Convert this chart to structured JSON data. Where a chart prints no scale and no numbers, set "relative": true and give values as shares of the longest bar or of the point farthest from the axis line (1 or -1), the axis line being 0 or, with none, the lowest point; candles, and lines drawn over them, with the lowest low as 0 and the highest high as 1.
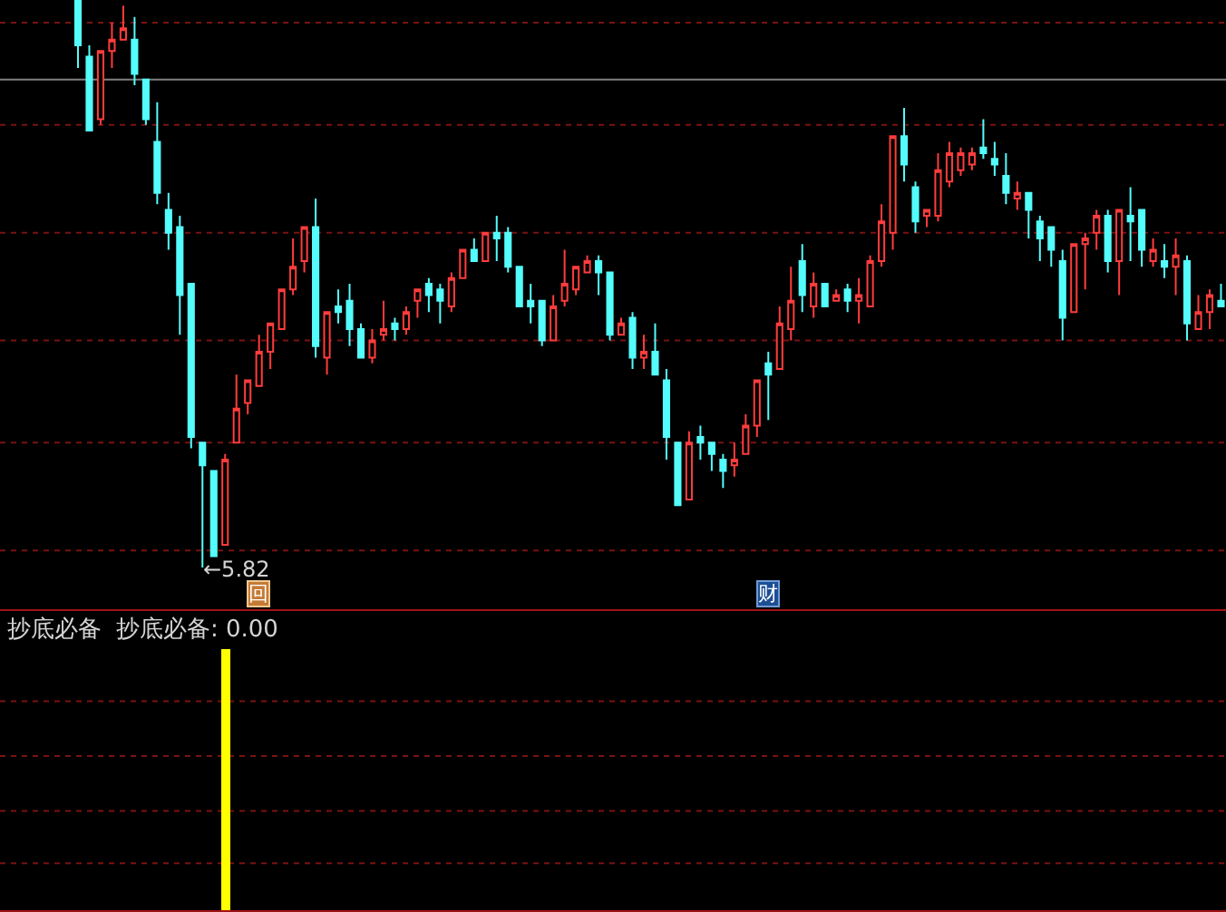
{
  "chart_data": [
    {
      "type": "candlestick",
      "categories": [
        null,
        null,
        null,
        null,
        null,
        null,
        null,
        null,
        null,
        null,
        null,
        null,
        null,
        null,
        null,
        null,
        null,
        null,
        null,
        null,
        null,
        null,
        null,
        null,
        null,
        null,
        null,
        null,
        null,
        null,
        null,
        null,
        null,
        null,
        null,
        null,
        null,
        null,
        null,
        null,
        null,
        null,
        null,
        null,
        null,
        null,
        null,
        null,
        null,
        null,
        null,
        null,
        null,
        null,
        null,
        null,
        null,
        null,
        null,
        null,
        null,
        null,
        null,
        null,
        null,
        null,
        null,
        null,
        null,
        null,
        null,
        null,
        null,
        null,
        null,
        null,
        null,
        null,
        null,
        null,
        null,
        null,
        null,
        null,
        null,
        null,
        null,
        null,
        null,
        null,
        null,
        null,
        null,
        null,
        null,
        null,
        null,
        null,
        null,
        null,
        null,
        null
      ],
      "ohlc": [
        [
          1.0,
          1.0,
          0.88,
          0.92
        ],
        [
          0.9,
          0.92,
          0.77,
          0.77
        ],
        [
          0.79,
          0.91,
          0.78,
          0.91
        ],
        [
          0.91,
          0.96,
          0.88,
          0.93
        ],
        [
          0.93,
          0.99,
          0.93,
          0.95
        ],
        [
          0.93,
          0.97,
          0.85,
          0.87
        ],
        [
          0.86,
          0.86,
          0.78,
          0.79
        ],
        [
          0.75,
          0.82,
          0.64,
          0.66
        ],
        [
          0.63,
          0.66,
          0.56,
          0.59
        ],
        [
          0.6,
          0.62,
          0.41,
          0.48
        ],
        [
          0.5,
          0.5,
          0.21,
          0.23
        ],
        [
          0.22,
          0.22,
          0.0,
          0.18
        ],
        [
          0.17,
          0.17,
          0.02,
          0.02
        ],
        [
          0.04,
          0.2,
          0.04,
          0.19
        ],
        [
          0.22,
          0.34,
          0.22,
          0.28
        ],
        [
          0.29,
          0.33,
          0.27,
          0.33
        ],
        [
          0.32,
          0.41,
          0.32,
          0.38
        ],
        [
          0.38,
          0.43,
          0.35,
          0.43
        ],
        [
          0.42,
          0.49,
          0.42,
          0.49
        ],
        [
          0.49,
          0.58,
          0.48,
          0.53
        ],
        [
          0.54,
          0.6,
          0.52,
          0.6
        ],
        [
          0.6,
          0.65,
          0.37,
          0.39
        ],
        [
          0.37,
          0.45,
          0.34,
          0.45
        ],
        [
          0.46,
          0.49,
          0.43,
          0.45
        ],
        [
          0.47,
          0.5,
          0.39,
          0.42
        ],
        [
          0.42,
          0.43,
          0.37,
          0.37
        ],
        [
          0.37,
          0.42,
          0.36,
          0.4
        ],
        [
          0.41,
          0.47,
          0.4,
          0.42
        ],
        [
          0.43,
          0.44,
          0.4,
          0.42
        ],
        [
          0.42,
          0.46,
          0.41,
          0.45
        ],
        [
          0.47,
          0.49,
          0.44,
          0.49
        ],
        [
          0.5,
          0.51,
          0.45,
          0.48
        ],
        [
          0.49,
          0.5,
          0.43,
          0.47
        ],
        [
          0.46,
          0.52,
          0.45,
          0.51
        ],
        [
          0.51,
          0.56,
          0.51,
          0.56
        ],
        [
          0.56,
          0.58,
          0.54,
          0.54
        ],
        [
          0.54,
          0.59,
          0.54,
          0.59
        ],
        [
          0.59,
          0.62,
          0.54,
          0.58
        ],
        [
          0.59,
          0.6,
          0.52,
          0.53
        ],
        [
          0.53,
          0.53,
          0.46,
          0.46
        ],
        [
          0.47,
          0.5,
          0.43,
          0.46
        ],
        [
          0.47,
          0.47,
          0.39,
          0.4
        ],
        [
          0.4,
          0.48,
          0.4,
          0.46
        ],
        [
          0.47,
          0.56,
          0.46,
          0.5
        ],
        [
          0.49,
          0.53,
          0.48,
          0.53
        ],
        [
          0.52,
          0.55,
          0.52,
          0.54
        ],
        [
          0.54,
          0.55,
          0.48,
          0.52
        ],
        [
          0.52,
          0.52,
          0.4,
          0.41
        ],
        [
          0.41,
          0.44,
          0.41,
          0.43
        ],
        [
          0.44,
          0.45,
          0.35,
          0.37
        ],
        [
          0.37,
          0.41,
          0.35,
          0.38
        ],
        [
          0.38,
          0.43,
          0.34,
          0.34
        ],
        [
          0.33,
          0.35,
          0.19,
          0.23
        ],
        [
          0.22,
          0.22,
          0.11,
          0.11
        ],
        [
          0.12,
          0.24,
          0.12,
          0.22
        ],
        [
          0.23,
          0.25,
          0.19,
          0.22
        ],
        [
          0.22,
          0.22,
          0.17,
          0.2
        ],
        [
          0.19,
          0.2,
          0.14,
          0.17
        ],
        [
          0.18,
          0.22,
          0.16,
          0.19
        ],
        [
          0.2,
          0.27,
          0.2,
          0.25
        ],
        [
          0.25,
          0.33,
          0.23,
          0.33
        ],
        [
          0.36,
          0.38,
          0.26,
          0.34
        ],
        [
          0.35,
          0.46,
          0.35,
          0.43
        ],
        [
          0.42,
          0.53,
          0.4,
          0.47
        ],
        [
          0.54,
          0.57,
          0.45,
          0.48
        ],
        [
          0.46,
          0.52,
          0.44,
          0.5
        ],
        [
          0.5,
          0.5,
          0.46,
          0.46
        ],
        [
          0.47,
          0.49,
          0.47,
          0.48
        ],
        [
          0.49,
          0.5,
          0.45,
          0.47
        ],
        [
          0.47,
          0.51,
          0.43,
          0.48
        ],
        [
          0.46,
          0.55,
          0.46,
          0.54
        ],
        [
          0.54,
          0.64,
          0.53,
          0.61
        ],
        [
          0.59,
          0.76,
          0.56,
          0.76
        ],
        [
          0.76,
          0.81,
          0.68,
          0.71
        ],
        [
          0.67,
          0.68,
          0.59,
          0.61
        ],
        [
          0.62,
          0.63,
          0.6,
          0.63
        ],
        [
          0.62,
          0.73,
          0.61,
          0.7
        ],
        [
          0.68,
          0.75,
          0.67,
          0.73
        ],
        [
          0.7,
          0.74,
          0.69,
          0.73
        ],
        [
          0.71,
          0.74,
          0.7,
          0.73
        ],
        [
          0.74,
          0.79,
          0.72,
          0.73
        ],
        [
          0.72,
          0.75,
          0.69,
          0.71
        ],
        [
          0.69,
          0.73,
          0.64,
          0.66
        ],
        [
          0.65,
          0.68,
          0.63,
          0.66
        ],
        [
          0.66,
          0.66,
          0.58,
          0.63
        ],
        [
          0.61,
          0.62,
          0.54,
          0.58
        ],
        [
          0.6,
          0.6,
          0.53,
          0.56
        ],
        [
          0.54,
          0.56,
          0.4,
          0.44
        ],
        [
          0.45,
          0.57,
          0.45,
          0.57
        ],
        [
          0.57,
          0.59,
          0.49,
          0.58
        ],
        [
          0.59,
          0.63,
          0.56,
          0.62
        ],
        [
          0.62,
          0.63,
          0.52,
          0.54
        ],
        [
          0.54,
          0.63,
          0.48,
          0.63
        ],
        [
          0.62,
          0.67,
          0.54,
          0.61
        ],
        [
          0.63,
          0.63,
          0.53,
          0.56
        ],
        [
          0.54,
          0.58,
          0.53,
          0.56
        ],
        [
          0.54,
          0.57,
          0.51,
          0.53
        ],
        [
          0.53,
          0.58,
          0.48,
          0.55
        ],
        [
          0.54,
          0.55,
          0.4,
          0.43
        ],
        [
          0.42,
          0.48,
          0.42,
          0.45
        ],
        [
          0.45,
          0.49,
          0.42,
          0.48
        ],
        [
          0.47,
          0.5,
          0.46,
          0.46
        ]
      ],
      "relative": true,
      "ref_lines": [
        {
          "axis": "y",
          "value": 0.86,
          "color": "#808080"
        },
        {
          "axis": "y",
          "value": 0.96,
          "color": "#7a1212",
          "line_style": "dotted"
        },
        {
          "axis": "y",
          "value": 0.78,
          "color": "#7a1212",
          "line_style": "dotted"
        },
        {
          "axis": "y",
          "value": 0.59,
          "color": "#7a1212",
          "line_style": "dotted"
        },
        {
          "axis": "y",
          "value": 0.4,
          "color": "#7a1212",
          "line_style": "dotted"
        },
        {
          "axis": "y",
          "value": 0.22,
          "color": "#7a1212",
          "line_style": "dotted"
        },
        {
          "axis": "y",
          "value": 0.03,
          "color": "#7a1212",
          "line_style": "dotted"
        }
      ],
      "annotations": [
        "←5.82",
        "回",
        "财"
      ]
    },
    {
      "type": "bar",
      "categories": [
        null,
        null,
        null,
        null,
        null,
        null,
        null,
        null,
        null,
        null,
        null,
        null,
        null,
        null,
        null,
        null,
        null,
        null,
        null,
        null,
        null,
        null,
        null,
        null,
        null,
        null,
        null,
        null,
        null,
        null,
        null,
        null,
        null,
        null,
        null,
        null,
        null,
        null,
        null,
        null,
        null,
        null,
        null,
        null,
        null,
        null,
        null,
        null,
        null,
        null,
        null,
        null,
        null,
        null,
        null,
        null,
        null,
        null,
        null,
        null,
        null,
        null,
        null,
        null,
        null,
        null,
        null,
        null,
        null,
        null,
        null,
        null,
        null,
        null,
        null,
        null,
        null,
        null,
        null,
        null,
        null,
        null,
        null,
        null,
        null,
        null,
        null,
        null,
        null,
        null,
        null,
        null,
        null,
        null,
        null,
        null,
        null,
        null,
        null,
        null,
        null,
        null
      ],
      "values": [
        null,
        null,
        null,
        null,
        null,
        null,
        null,
        null,
        null,
        null,
        null,
        null,
        null,
        1,
        null,
        null,
        null,
        null,
        null,
        null,
        null,
        null,
        null,
        null,
        null,
        null,
        null,
        null,
        null,
        null,
        null,
        null,
        null,
        null,
        null,
        null,
        null,
        null,
        null,
        null,
        null,
        null,
        null,
        null,
        null,
        null,
        null,
        null,
        null,
        null,
        null,
        null,
        null,
        null,
        null,
        null,
        null,
        null,
        null,
        null,
        null,
        null,
        null,
        null,
        null,
        null,
        null,
        null,
        null,
        null,
        null,
        null,
        null,
        null,
        null,
        null,
        null,
        null,
        null,
        null,
        null,
        null,
        null,
        null,
        null,
        null,
        null,
        null,
        null,
        null,
        null,
        null,
        null,
        null,
        null,
        null,
        null,
        null,
        null,
        null,
        null,
        null
      ],
      "color": "#ffff00",
      "relative": true,
      "ref_lines": [
        {
          "axis": "y",
          "value": 0.8,
          "color": "#7a1212",
          "line_style": "dotted"
        },
        {
          "axis": "y",
          "value": 0.59,
          "color": "#7a1212",
          "line_style": "dotted"
        },
        {
          "axis": "y",
          "value": 0.38,
          "color": "#7a1212",
          "line_style": "dotted"
        },
        {
          "axis": "y",
          "value": 0.18,
          "color": "#7a1212",
          "line_style": "dotted"
        }
      ],
      "title": "抄底必备",
      "annotations": [
        "抄底必备: 0.00"
      ]
    }
  ]
}
